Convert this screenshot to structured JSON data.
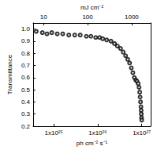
{
  "chart_data": {
    "type": "scatter",
    "x_label": "ph cm⁻² s⁻¹",
    "x2_label": "mJ cm⁻²",
    "y_label": "Transmittance",
    "log": "x",
    "xlim": [
      3.4e+24,
      1.6e+27
    ],
    "xticks": [
      {
        "value": 1e+25,
        "label": "1x10²⁵"
      },
      {
        "value": 1e+26,
        "label": "1x10²⁶"
      },
      {
        "value": 1e+27,
        "label": "1x10²⁷"
      }
    ],
    "x2lim": [
      5.8,
      2700
    ],
    "x2ticks": [
      10,
      100,
      1000
    ],
    "ylim": [
      0.2,
      1.05
    ],
    "yticks": [
      0.2,
      0.3,
      0.4,
      0.5,
      0.6,
      0.7,
      0.8,
      0.9,
      {
        "value": 1,
        "label": "1.0"
      }
    ],
    "grid": false,
    "marker": "circle_open",
    "color": "#000000",
    "x": [
      4e+24,
      5.5e+24,
      7e+24,
      9e+24,
      1.2e+25,
      1.6e+25,
      2.2e+25,
      3e+25,
      4e+25,
      5.5e+25,
      7e+25,
      9e+25,
      1.1e+26,
      1.3e+26,
      1.6e+26,
      2e+26,
      2.4e+26,
      2.8e+26,
      3.3e+26,
      3.8e+26,
      4.3e+26,
      4.8e+26,
      5.3e+26,
      5.8e+26,
      6.3e+26,
      6.8e+26,
      7.3e+26,
      7.8e+26,
      8.3e+26,
      8.7e+26,
      9e+26,
      9.2e+26,
      9.4e+26,
      9.6e+26,
      9.7e+26,
      9.8e+26,
      9.9e+26,
      1e+27
    ],
    "values": [
      0.98,
      0.97,
      0.96,
      0.97,
      0.96,
      0.96,
      0.95,
      0.95,
      0.95,
      0.94,
      0.94,
      0.93,
      0.93,
      0.92,
      0.91,
      0.9,
      0.88,
      0.86,
      0.84,
      0.81,
      0.78,
      0.75,
      0.72,
      0.68,
      0.64,
      0.6,
      0.58,
      0.57,
      0.55,
      0.52,
      0.48,
      0.44,
      0.4,
      0.36,
      0.33,
      0.3,
      0.27,
      0.25
    ]
  }
}
